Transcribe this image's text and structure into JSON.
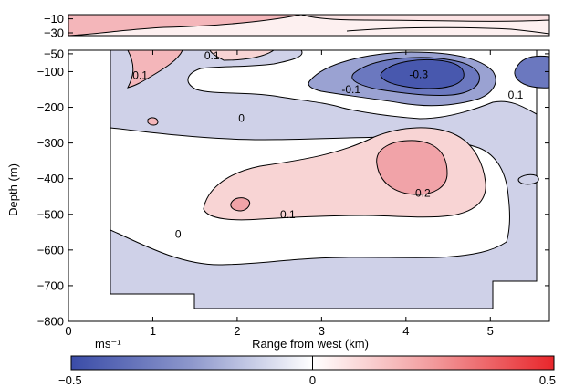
{
  "chart_data": [
    {
      "type": "heatmap",
      "panel": "upper",
      "xlim": [
        0,
        5.7
      ],
      "ylim": [
        -30,
        -5
      ],
      "yticks": [
        -10,
        -30
      ],
      "ytick_labels": [
        "−10",
        "−30"
      ],
      "xtick_labels": []
    },
    {
      "type": "heatmap",
      "panel": "main",
      "xlabel": "Range from west (km)",
      "ylabel": "Depth (m)",
      "xlim": [
        0,
        5.7
      ],
      "ylim": [
        -800,
        -40
      ],
      "xticks": [
        0,
        1,
        2,
        3,
        4,
        5
      ],
      "xtick_labels": [
        "0",
        "1",
        "2",
        "3",
        "4",
        "5"
      ],
      "yticks": [
        -50,
        -100,
        -200,
        -300,
        -400,
        -500,
        -600,
        -700,
        -800
      ],
      "ytick_labels": [
        "−50",
        "−100",
        "−200",
        "−300",
        "−400",
        "−500",
        "−600",
        "−700",
        "−800"
      ],
      "contour_labels": [
        {
          "text": "0.1",
          "x": 1.7,
          "y": -55
        },
        {
          "text": "0.1",
          "x": 0.85,
          "y": -110
        },
        {
          "text": "0",
          "x": 2.05,
          "y": -230
        },
        {
          "text": "-0.1",
          "x": 3.35,
          "y": -150
        },
        {
          "text": "-0.3",
          "x": 4.15,
          "y": -108
        },
        {
          "text": "0.1",
          "x": 5.3,
          "y": -165
        },
        {
          "text": "0.2",
          "x": 4.2,
          "y": -440
        },
        {
          "text": "0.1",
          "x": 2.6,
          "y": -500
        },
        {
          "text": "0",
          "x": 1.3,
          "y": -555
        }
      ],
      "field_extremes": [
        {
          "feature": "negative core",
          "x": 4.4,
          "y": -100,
          "value": -0.35
        },
        {
          "feature": "positive core",
          "x": 4.0,
          "y": -380,
          "value": 0.2
        },
        {
          "feature": "near-surface positive",
          "x": 1.0,
          "y": -55,
          "value": 0.15
        }
      ]
    }
  ],
  "colorbar": {
    "unit": "ms⁻¹",
    "min": -0.5,
    "max": 0.5,
    "tick_labels": [
      "−0.5",
      "0",
      "0.5"
    ],
    "colors": {
      "negative": "#3a4ca8",
      "zero": "#ffffff",
      "positive": "#e8262b"
    }
  },
  "palette": {
    "fill_neg_1": "#cfd1e8",
    "fill_neg_2": "#9aa2d2",
    "fill_neg_3": "#6b78bf",
    "fill_neg_4": "#4858ae",
    "fill_pos_1": "#f8d4d4",
    "fill_pos_2": "#f1a3a8"
  }
}
